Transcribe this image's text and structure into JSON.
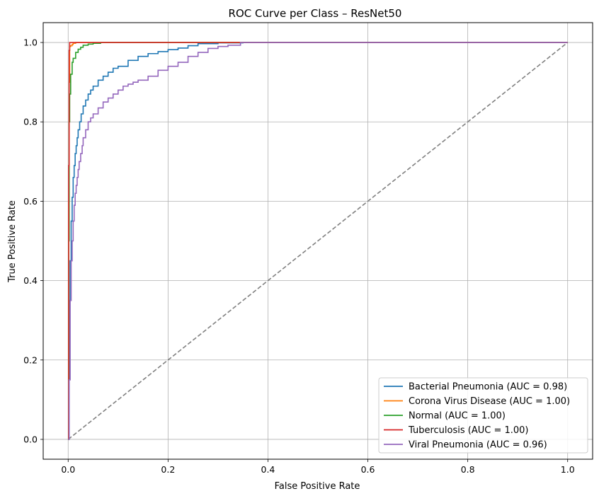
{
  "chart_data": {
    "type": "line",
    "title": "ROC Curve per Class – ResNet50",
    "xlabel": "False Positive Rate",
    "ylabel": "True Positive Rate",
    "xlim": [
      -0.05,
      1.05
    ],
    "ylim": [
      -0.05,
      1.05
    ],
    "xticks": [
      0.0,
      0.2,
      0.4,
      0.6,
      0.8,
      1.0
    ],
    "yticks": [
      0.0,
      0.2,
      0.4,
      0.6,
      0.8,
      1.0
    ],
    "xtick_labels": [
      "0.0",
      "0.2",
      "0.4",
      "0.6",
      "0.8",
      "1.0"
    ],
    "ytick_labels": [
      "0.0",
      "0.2",
      "0.4",
      "0.6",
      "0.8",
      "1.0"
    ],
    "grid": true,
    "legend_position": "lower-right",
    "series": [
      {
        "name": "Bacterial Pneumonia (AUC = 0.98)",
        "color": "#1f77b4",
        "x": [
          0,
          0.002,
          0.003,
          0.004,
          0.006,
          0.008,
          0.01,
          0.012,
          0.014,
          0.016,
          0.018,
          0.02,
          0.023,
          0.026,
          0.03,
          0.035,
          0.04,
          0.045,
          0.05,
          0.06,
          0.07,
          0.08,
          0.09,
          0.1,
          0.12,
          0.14,
          0.16,
          0.18,
          0.2,
          0.22,
          0.24,
          0.26,
          0.3,
          0.35,
          1.0
        ],
        "y": [
          0,
          0.2,
          0.35,
          0.45,
          0.55,
          0.61,
          0.66,
          0.69,
          0.72,
          0.74,
          0.76,
          0.78,
          0.8,
          0.82,
          0.84,
          0.855,
          0.87,
          0.88,
          0.89,
          0.905,
          0.915,
          0.925,
          0.935,
          0.94,
          0.955,
          0.965,
          0.972,
          0.977,
          0.982,
          0.986,
          0.992,
          0.997,
          0.999,
          1.0,
          1.0
        ]
      },
      {
        "name": "Corona Virus Disease (AUC = 1.00)",
        "color": "#ff7f0e",
        "x": [
          0,
          0.001,
          0.002,
          0.003,
          0.005,
          0.008,
          0.01,
          0.015,
          1.0
        ],
        "y": [
          0,
          0.6,
          0.9,
          0.99,
          0.992,
          0.995,
          0.998,
          1.0,
          1.0
        ]
      },
      {
        "name": "Normal (AUC = 1.00)",
        "color": "#2ca02c",
        "x": [
          0,
          0.001,
          0.002,
          0.003,
          0.005,
          0.008,
          0.01,
          0.015,
          0.02,
          0.025,
          0.03,
          0.04,
          0.05,
          0.065,
          1.0
        ],
        "y": [
          0,
          0.5,
          0.8,
          0.87,
          0.92,
          0.95,
          0.96,
          0.975,
          0.983,
          0.988,
          0.993,
          0.996,
          0.998,
          1.0,
          1.0
        ]
      },
      {
        "name": "Tuberculosis (AUC = 1.00)",
        "color": "#d62728",
        "x": [
          0,
          0.001,
          0.002,
          0.003,
          0.003,
          1.0
        ],
        "y": [
          0,
          0.69,
          0.98,
          0.995,
          1.0,
          1.0
        ]
      },
      {
        "name": "Viral Pneumonia (AUC = 0.96)",
        "color": "#9467bd",
        "x": [
          0,
          0.002,
          0.004,
          0.006,
          0.008,
          0.01,
          0.012,
          0.014,
          0.016,
          0.018,
          0.02,
          0.022,
          0.025,
          0.028,
          0.03,
          0.035,
          0.04,
          0.045,
          0.05,
          0.06,
          0.07,
          0.08,
          0.09,
          0.1,
          0.11,
          0.12,
          0.13,
          0.14,
          0.16,
          0.18,
          0.2,
          0.22,
          0.24,
          0.26,
          0.28,
          0.3,
          0.32,
          0.345,
          1.0
        ],
        "y": [
          0,
          0.15,
          0.35,
          0.45,
          0.5,
          0.55,
          0.59,
          0.62,
          0.64,
          0.66,
          0.68,
          0.7,
          0.72,
          0.74,
          0.76,
          0.78,
          0.8,
          0.81,
          0.82,
          0.835,
          0.85,
          0.86,
          0.87,
          0.88,
          0.89,
          0.895,
          0.9,
          0.905,
          0.915,
          0.93,
          0.94,
          0.95,
          0.965,
          0.975,
          0.985,
          0.99,
          0.993,
          1.0,
          1.0
        ]
      }
    ],
    "reference_line": {
      "x": [
        0,
        1
      ],
      "y": [
        0,
        1
      ],
      "color": "#808080",
      "style": "dashed"
    }
  }
}
